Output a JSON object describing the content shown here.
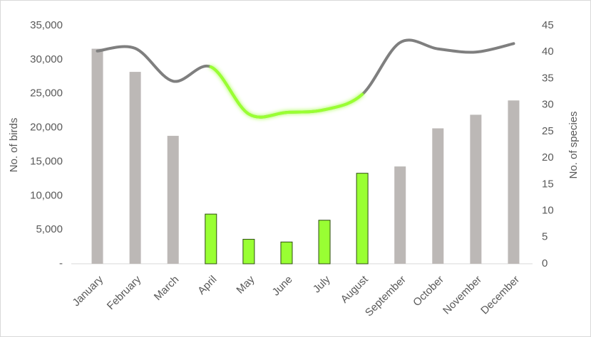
{
  "chart_data": {
    "type": "bar-line",
    "categories": [
      "January",
      "February",
      "March",
      "April",
      "May",
      "June",
      "July",
      "August",
      "September",
      "October",
      "November",
      "December"
    ],
    "series": [
      {
        "type": "bar",
        "values": [
          31600,
          28200,
          18800,
          7300,
          3600,
          3200,
          6400,
          13300,
          14300,
          19900,
          21900,
          24000
        ],
        "colors": [
          "#bcb8b6",
          "#bcb8b6",
          "#bcb8b6",
          "#99ff33",
          "#99ff33",
          "#99ff33",
          "#99ff33",
          "#99ff33",
          "#bcb8b6",
          "#bcb8b6",
          "#bcb8b6",
          "#bcb8b6"
        ]
      },
      {
        "type": "line",
        "axis": "y2",
        "color": "#7f7f7f",
        "highlight_color": "#99ff33",
        "highlight_range": [
          3,
          7
        ],
        "values": [
          40.2,
          40.7,
          34.5,
          37.2,
          28.3,
          28.6,
          29.1,
          32.0,
          41.8,
          40.6,
          40.0,
          41.6
        ]
      }
    ],
    "y_label": "No. of birds",
    "y2_label": "No. of species",
    "ylim": [
      0,
      35000
    ],
    "yticks": [
      {
        "value": 0,
        "label": "-"
      },
      {
        "value": 5000,
        "label": "5,000"
      },
      {
        "value": 10000,
        "label": "10,000"
      },
      {
        "value": 15000,
        "label": "15,000"
      },
      {
        "value": 20000,
        "label": "20,000"
      },
      {
        "value": 25000,
        "label": "25,000"
      },
      {
        "value": 30000,
        "label": "30,000"
      },
      {
        "value": 35000,
        "label": "35,000"
      }
    ],
    "y2lim": [
      0,
      45
    ],
    "y2ticks": [
      0,
      5,
      10,
      15,
      20,
      25,
      30,
      35,
      40,
      45
    ]
  }
}
